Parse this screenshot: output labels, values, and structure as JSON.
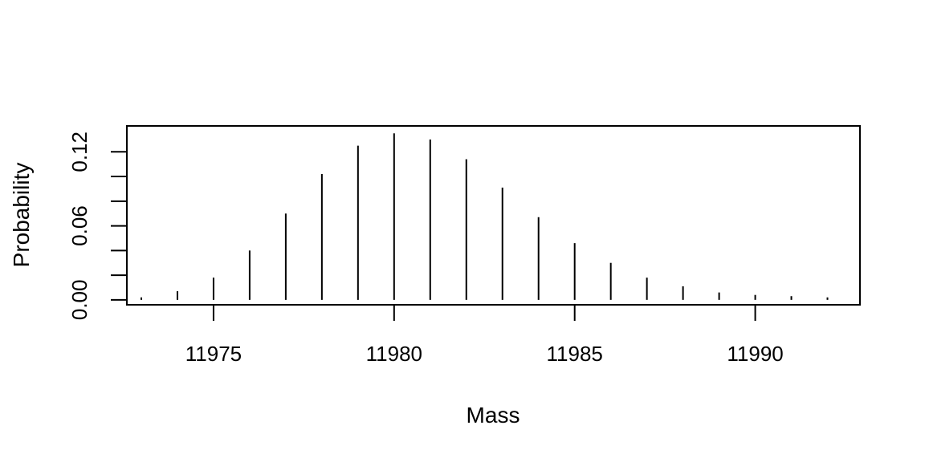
{
  "chart_data": {
    "type": "bar",
    "style": "vertical lines (spikes)",
    "title": "",
    "xlabel": "Mass",
    "ylabel": "Probability",
    "xlim": [
      11972.6,
      11992.9
    ],
    "ylim": [
      -0.004,
      0.141
    ],
    "xticks": [
      11975,
      11980,
      11985,
      11990
    ],
    "yticks": [
      0.0,
      0.02,
      0.04,
      0.06,
      0.08,
      0.1,
      0.12
    ],
    "ytick_labels": [
      "0.00",
      "",
      "",
      "0.06",
      "",
      "",
      "0.12"
    ],
    "grid": false,
    "legend": "none",
    "x": [
      11973,
      11974,
      11975,
      11976,
      11977,
      11978,
      11979,
      11980,
      11981,
      11982,
      11983,
      11984,
      11985,
      11986,
      11987,
      11988,
      11989,
      11990,
      11991,
      11992
    ],
    "values": [
      0.002,
      0.007,
      0.018,
      0.04,
      0.07,
      0.102,
      0.125,
      0.135,
      0.13,
      0.114,
      0.091,
      0.067,
      0.046,
      0.03,
      0.018,
      0.011,
      0.006,
      0.004,
      0.003,
      0.002
    ]
  }
}
